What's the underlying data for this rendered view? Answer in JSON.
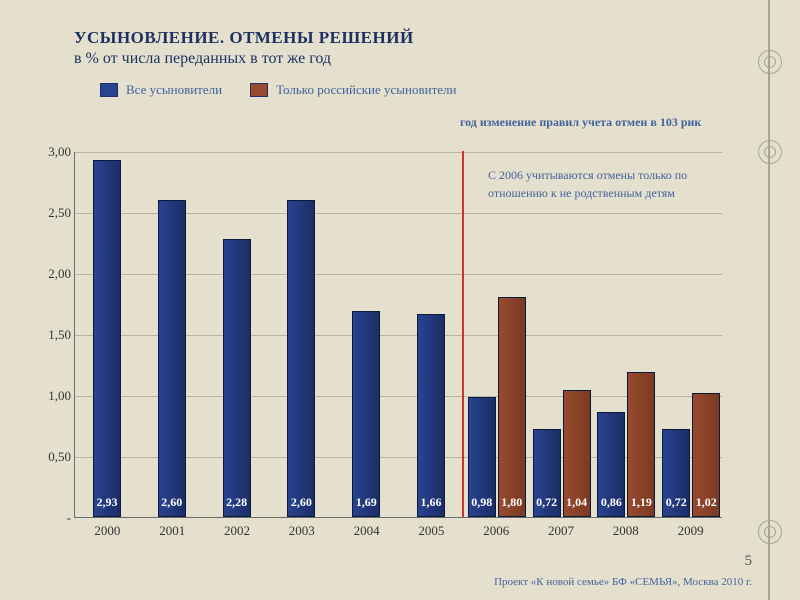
{
  "title": "УСЫНОВЛЕНИЕ. ОТМЕНЫ РЕШЕНИЙ",
  "subtitle": "в % от числа переданных в тот же год",
  "legend": {
    "series1": {
      "label": "Все усыновители",
      "color": "#2a4390"
    },
    "series2": {
      "label": "Только российские усыновители",
      "color": "#994a2e"
    }
  },
  "annot1": "год изменение правил учета отмен в 103 рик",
  "annot2": "С 2006 учитываются отмены только по отношению к не родственным детям",
  "chart": {
    "type": "bar",
    "ylim": [
      0,
      3.0
    ],
    "ytick_step": 0.5,
    "yticks": [
      "-",
      "0,50",
      "1,00",
      "1,50",
      "2,00",
      "2,50",
      "3,00"
    ],
    "grid_color": "#b8b4a0",
    "categories": [
      "2000",
      "2001",
      "2002",
      "2003",
      "2004",
      "2005",
      "2006",
      "2007",
      "2008",
      "2009"
    ],
    "series1_values": [
      2.93,
      2.6,
      2.28,
      2.6,
      1.69,
      1.66,
      0.98,
      0.72,
      0.86,
      0.72
    ],
    "series2_values": [
      null,
      null,
      null,
      null,
      null,
      null,
      1.8,
      1.04,
      1.19,
      1.02
    ],
    "series1_labels": [
      "2,93",
      "2,60",
      "2,28",
      "2,60",
      "1,69",
      "1,66",
      "0,98",
      "0,72",
      "0,86",
      "0,72"
    ],
    "series2_labels": [
      null,
      null,
      null,
      null,
      null,
      null,
      "1,80",
      "1,04",
      "1,19",
      "1,02"
    ],
    "vline_after_index": 5,
    "vline_color": "#cc3333",
    "background_color": "#e5e0ce",
    "bar_border_color": "#0a1a3a"
  },
  "page_number": "5",
  "footer": "Проект «К новой семье» БФ «СЕМЬЯ», Москва 2010 г."
}
